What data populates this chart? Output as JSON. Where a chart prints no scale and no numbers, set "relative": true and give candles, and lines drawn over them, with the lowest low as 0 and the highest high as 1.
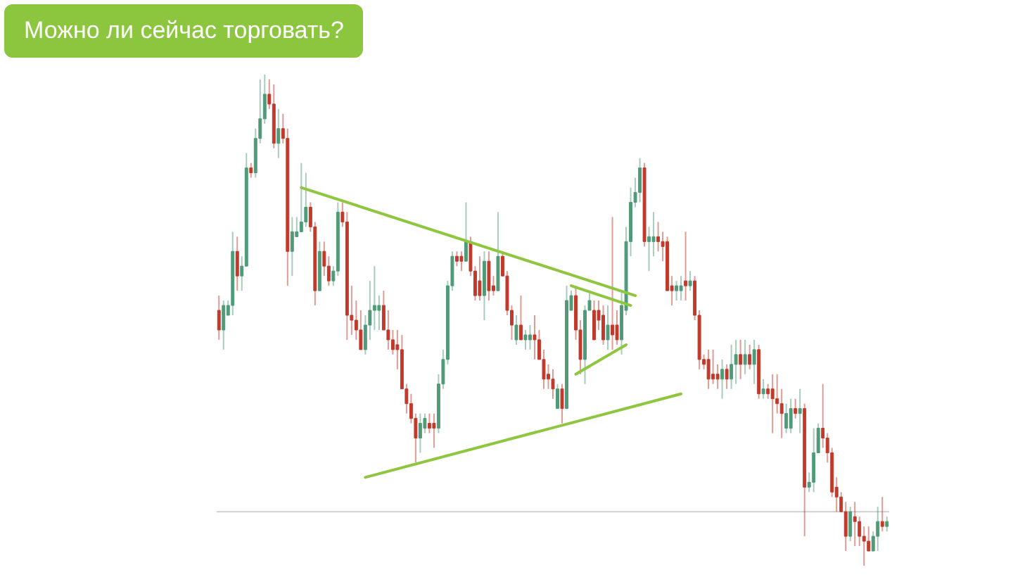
{
  "chart_data": {
    "type": "candlestick",
    "title": "Можно ли сейчас торговать?",
    "relative": true,
    "categories": [
      null,
      null,
      null,
      null,
      null,
      null,
      null,
      null,
      null,
      null,
      null,
      null,
      null,
      null,
      null,
      null,
      null,
      null,
      null,
      null,
      null,
      null,
      null,
      null,
      null,
      null,
      null,
      null,
      null,
      null,
      null,
      null,
      null,
      null,
      null,
      null,
      null,
      null,
      null,
      null,
      null,
      null,
      null,
      null,
      null,
      null,
      null,
      null,
      null,
      null,
      null,
      null,
      null,
      null,
      null,
      null,
      null,
      null,
      null,
      null,
      null,
      null,
      null,
      null,
      null,
      null,
      null,
      null,
      null,
      null,
      null,
      null,
      null,
      null,
      null,
      null,
      null,
      null,
      null,
      null,
      null,
      null,
      null,
      null,
      null,
      null,
      null,
      null,
      null,
      null,
      null,
      null,
      null,
      null,
      null,
      null,
      null,
      null,
      null,
      null,
      null,
      null,
      null,
      null,
      null,
      null,
      null,
      null,
      null,
      null,
      null,
      null,
      null,
      null,
      null,
      null,
      null,
      null,
      null,
      null,
      null,
      null,
      null,
      null,
      null,
      null,
      null,
      null,
      null,
      null,
      null,
      null,
      null,
      null,
      null,
      null,
      null,
      null,
      null,
      null,
      null,
      null,
      null,
      null,
      null,
      null,
      null
    ],
    "ohlc": [
      [
        0.52,
        0.55,
        0.46,
        0.48
      ],
      [
        0.48,
        0.54,
        0.44,
        0.53
      ],
      [
        0.51,
        0.54,
        0.51,
        0.53
      ],
      [
        0.53,
        0.68,
        0.51,
        0.64
      ],
      [
        0.64,
        0.67,
        0.56,
        0.59
      ],
      [
        0.59,
        0.63,
        0.56,
        0.61
      ],
      [
        0.61,
        0.84,
        0.61,
        0.81
      ],
      [
        0.81,
        0.82,
        0.79,
        0.8
      ],
      [
        0.8,
        0.89,
        0.79,
        0.87
      ],
      [
        0.87,
        0.99,
        0.86,
        0.91
      ],
      [
        0.91,
        1.0,
        0.9,
        0.96
      ],
      [
        0.96,
        0.99,
        0.93,
        0.94
      ],
      [
        0.94,
        0.98,
        0.85,
        0.86
      ],
      [
        0.86,
        0.93,
        0.83,
        0.89
      ],
      [
        0.89,
        0.92,
        0.86,
        0.87
      ],
      [
        0.87,
        0.89,
        0.57,
        0.64
      ],
      [
        0.64,
        0.71,
        0.59,
        0.68
      ],
      [
        0.67,
        0.71,
        0.67,
        0.68
      ],
      [
        0.68,
        0.82,
        0.68,
        0.7
      ],
      [
        0.7,
        0.8,
        0.69,
        0.73
      ],
      [
        0.73,
        0.74,
        0.68,
        0.69
      ],
      [
        0.69,
        0.7,
        0.53,
        0.56
      ],
      [
        0.56,
        0.66,
        0.56,
        0.64
      ],
      [
        0.64,
        0.66,
        0.59,
        0.61
      ],
      [
        0.61,
        0.63,
        0.57,
        0.58
      ],
      [
        0.58,
        0.61,
        0.57,
        0.6
      ],
      [
        0.6,
        0.74,
        0.59,
        0.72
      ],
      [
        0.72,
        0.74,
        0.69,
        0.7
      ],
      [
        0.7,
        0.72,
        0.46,
        0.51
      ],
      [
        0.51,
        0.57,
        0.47,
        0.5
      ],
      [
        0.5,
        0.54,
        0.46,
        0.48
      ],
      [
        0.48,
        0.52,
        0.44,
        0.44
      ],
      [
        0.44,
        0.51,
        0.43,
        0.49
      ],
      [
        0.49,
        0.58,
        0.46,
        0.52
      ],
      [
        0.52,
        0.61,
        0.48,
        0.53
      ],
      [
        0.52,
        0.55,
        0.48,
        0.53
      ],
      [
        0.53,
        0.56,
        0.48,
        0.48
      ],
      [
        0.48,
        0.52,
        0.44,
        0.46
      ],
      [
        0.46,
        0.48,
        0.43,
        0.44
      ],
      [
        0.45,
        0.48,
        0.4,
        0.44
      ],
      [
        0.44,
        0.47,
        0.36,
        0.36
      ],
      [
        0.36,
        0.37,
        0.31,
        0.33
      ],
      [
        0.33,
        0.35,
        0.29,
        0.3
      ],
      [
        0.3,
        0.31,
        0.21,
        0.26
      ],
      [
        0.26,
        0.31,
        0.23,
        0.29
      ],
      [
        0.28,
        0.31,
        0.27,
        0.3
      ],
      [
        0.29,
        0.31,
        0.27,
        0.28
      ],
      [
        0.29,
        0.31,
        0.24,
        0.28
      ],
      [
        0.28,
        0.39,
        0.27,
        0.37
      ],
      [
        0.37,
        0.44,
        0.36,
        0.42
      ],
      [
        0.42,
        0.58,
        0.41,
        0.57
      ],
      [
        0.57,
        0.64,
        0.56,
        0.63
      ],
      [
        0.63,
        0.64,
        0.61,
        0.62
      ],
      [
        0.63,
        0.64,
        0.6,
        0.62
      ],
      [
        0.62,
        0.74,
        0.62,
        0.66
      ],
      [
        0.66,
        0.67,
        0.59,
        0.6
      ],
      [
        0.6,
        0.61,
        0.54,
        0.55
      ],
      [
        0.58,
        0.63,
        0.54,
        0.55
      ],
      [
        0.55,
        0.64,
        0.5,
        0.62
      ],
      [
        0.62,
        0.64,
        0.54,
        0.56
      ],
      [
        0.57,
        0.59,
        0.55,
        0.56
      ],
      [
        0.56,
        0.72,
        0.56,
        0.63
      ],
      [
        0.63,
        0.64,
        0.59,
        0.59
      ],
      [
        0.59,
        0.6,
        0.51,
        0.52
      ],
      [
        0.52,
        0.53,
        0.46,
        0.49
      ],
      [
        0.46,
        0.51,
        0.45,
        0.49
      ],
      [
        0.49,
        0.55,
        0.46,
        0.46
      ],
      [
        0.46,
        0.48,
        0.44,
        0.47
      ],
      [
        0.46,
        0.49,
        0.44,
        0.47
      ],
      [
        0.47,
        0.51,
        0.42,
        0.46
      ],
      [
        0.46,
        0.48,
        0.42,
        0.42
      ],
      [
        0.42,
        0.44,
        0.36,
        0.38
      ],
      [
        0.39,
        0.41,
        0.36,
        0.38
      ],
      [
        0.38,
        0.4,
        0.34,
        0.36
      ],
      [
        0.32,
        0.37,
        0.32,
        0.36
      ],
      [
        0.36,
        0.37,
        0.29,
        0.32
      ],
      [
        0.32,
        0.57,
        0.32,
        0.54
      ],
      [
        0.52,
        0.56,
        0.52,
        0.55
      ],
      [
        0.55,
        0.57,
        0.46,
        0.48
      ],
      [
        0.48,
        0.5,
        0.39,
        0.42
      ],
      [
        0.42,
        0.53,
        0.37,
        0.52
      ],
      [
        0.52,
        0.56,
        0.52,
        0.54
      ],
      [
        0.52,
        0.54,
        0.46,
        0.46
      ],
      [
        0.52,
        0.54,
        0.48,
        0.5
      ],
      [
        0.51,
        0.53,
        0.45,
        0.46
      ],
      [
        0.46,
        0.53,
        0.44,
        0.49
      ],
      [
        0.49,
        0.71,
        0.44,
        0.47
      ],
      [
        0.49,
        0.52,
        0.45,
        0.46
      ],
      [
        0.46,
        0.56,
        0.43,
        0.53
      ],
      [
        0.52,
        0.69,
        0.51,
        0.66
      ],
      [
        0.66,
        0.77,
        0.63,
        0.74
      ],
      [
        0.74,
        0.79,
        0.73,
        0.76
      ],
      [
        0.76,
        0.83,
        0.74,
        0.81
      ],
      [
        0.81,
        0.82,
        0.65,
        0.66
      ],
      [
        0.66,
        0.69,
        0.6,
        0.67
      ],
      [
        0.66,
        0.72,
        0.63,
        0.67
      ],
      [
        0.67,
        0.7,
        0.64,
        0.66
      ],
      [
        0.66,
        0.68,
        0.62,
        0.65
      ],
      [
        0.66,
        0.67,
        0.56,
        0.56
      ],
      [
        0.57,
        0.59,
        0.53,
        0.56
      ],
      [
        0.56,
        0.58,
        0.54,
        0.57
      ],
      [
        0.56,
        0.59,
        0.54,
        0.57
      ],
      [
        0.58,
        0.68,
        0.54,
        0.57
      ],
      [
        0.57,
        0.6,
        0.56,
        0.58
      ],
      [
        0.58,
        0.59,
        0.5,
        0.51
      ],
      [
        0.51,
        0.52,
        0.4,
        0.42
      ],
      [
        0.42,
        0.43,
        0.4,
        0.41
      ],
      [
        0.42,
        0.44,
        0.36,
        0.38
      ],
      [
        0.39,
        0.44,
        0.37,
        0.38
      ],
      [
        0.39,
        0.41,
        0.36,
        0.38
      ],
      [
        0.38,
        0.42,
        0.34,
        0.4
      ],
      [
        0.4,
        0.41,
        0.36,
        0.38
      ],
      [
        0.38,
        0.45,
        0.36,
        0.41
      ],
      [
        0.41,
        0.46,
        0.37,
        0.43
      ],
      [
        0.43,
        0.46,
        0.38,
        0.41
      ],
      [
        0.41,
        0.46,
        0.39,
        0.43
      ],
      [
        0.43,
        0.45,
        0.4,
        0.41
      ],
      [
        0.41,
        0.46,
        0.37,
        0.44
      ],
      [
        0.44,
        0.45,
        0.34,
        0.35
      ],
      [
        0.35,
        0.38,
        0.34,
        0.36
      ],
      [
        0.36,
        0.37,
        0.34,
        0.35
      ],
      [
        0.36,
        0.39,
        0.27,
        0.34
      ],
      [
        0.34,
        0.39,
        0.31,
        0.33
      ],
      [
        0.33,
        0.36,
        0.26,
        0.31
      ],
      [
        0.28,
        0.33,
        0.27,
        0.31
      ],
      [
        0.28,
        0.34,
        0.27,
        0.32
      ],
      [
        0.32,
        0.34,
        0.3,
        0.31
      ],
      [
        0.31,
        0.36,
        0.27,
        0.32
      ],
      [
        0.32,
        0.33,
        0.06,
        0.16
      ],
      [
        0.16,
        0.19,
        0.15,
        0.17
      ],
      [
        0.17,
        0.28,
        0.15,
        0.23
      ],
      [
        0.23,
        0.29,
        0.23,
        0.28
      ],
      [
        0.28,
        0.37,
        0.24,
        0.26
      ],
      [
        0.26,
        0.27,
        0.21,
        0.23
      ],
      [
        0.23,
        0.24,
        0.14,
        0.15
      ],
      [
        0.16,
        0.18,
        0.11,
        0.14
      ],
      [
        0.14,
        0.15,
        0.11,
        0.11
      ],
      [
        0.11,
        0.13,
        0.03,
        0.06
      ],
      [
        0.06,
        0.12,
        0.05,
        0.11
      ],
      [
        0.1,
        0.13,
        0.04,
        0.09
      ],
      [
        0.09,
        0.1,
        0.04,
        0.06
      ],
      [
        0.06,
        0.08,
        0.0,
        0.05
      ],
      [
        0.05,
        0.08,
        0.03,
        0.03
      ],
      [
        0.03,
        0.07,
        0.03,
        0.06
      ],
      [
        0.06,
        0.12,
        0.03,
        0.09
      ],
      [
        0.09,
        0.14,
        0.07,
        0.08
      ],
      [
        0.08,
        0.1,
        0.07,
        0.09
      ]
    ],
    "colors": [
      "#c0392b",
      "#4f9a78",
      "#4f9a78",
      "#4f9a78",
      "#c0392b",
      "#4f9a78",
      "#4f9a78",
      "#c0392b",
      "#4f9a78",
      "#4f9a78",
      "#4f9a78",
      "#c0392b",
      "#c0392b",
      "#4f9a78",
      "#c0392b",
      "#c0392b",
      "#4f9a78",
      "#4f9a78",
      "#4f9a78",
      "#4f9a78",
      "#c0392b",
      "#c0392b",
      "#4f9a78",
      "#c0392b",
      "#c0392b",
      "#4f9a78",
      "#4f9a78",
      "#c0392b",
      "#c0392b",
      "#c0392b",
      "#c0392b",
      "#c0392b",
      "#4f9a78",
      "#4f9a78",
      "#4f9a78",
      "#4f9a78",
      "#c0392b",
      "#c0392b",
      "#c0392b",
      "#c0392b",
      "#c0392b",
      "#c0392b",
      "#c0392b",
      "#c0392b",
      "#4f9a78",
      "#4f9a78",
      "#c0392b",
      "#c0392b",
      "#4f9a78",
      "#4f9a78",
      "#4f9a78",
      "#4f9a78",
      "#c0392b",
      "#c0392b",
      "#4f9a78",
      "#c0392b",
      "#c0392b",
      "#c0392b",
      "#4f9a78",
      "#c0392b",
      "#c0392b",
      "#4f9a78",
      "#c0392b",
      "#c0392b",
      "#c0392b",
      "#4f9a78",
      "#c0392b",
      "#4f9a78",
      "#4f9a78",
      "#c0392b",
      "#c0392b",
      "#c0392b",
      "#c0392b",
      "#c0392b",
      "#4f9a78",
      "#c0392b",
      "#4f9a78",
      "#4f9a78",
      "#c0392b",
      "#c0392b",
      "#4f9a78",
      "#4f9a78",
      "#c0392b",
      "#c0392b",
      "#c0392b",
      "#4f9a78",
      "#c0392b",
      "#c0392b",
      "#4f9a78",
      "#4f9a78",
      "#4f9a78",
      "#4f9a78",
      "#4f9a78",
      "#c0392b",
      "#4f9a78",
      "#4f9a78",
      "#c0392b",
      "#c0392b",
      "#c0392b",
      "#c0392b",
      "#4f9a78",
      "#4f9a78",
      "#c0392b",
      "#4f9a78",
      "#c0392b",
      "#c0392b",
      "#c0392b",
      "#c0392b",
      "#c0392b",
      "#c0392b",
      "#4f9a78",
      "#c0392b",
      "#4f9a78",
      "#4f9a78",
      "#c0392b",
      "#4f9a78",
      "#c0392b",
      "#4f9a78",
      "#c0392b",
      "#4f9a78",
      "#c0392b",
      "#c0392b",
      "#c0392b",
      "#c0392b",
      "#4f9a78",
      "#4f9a78",
      "#c0392b",
      "#4f9a78",
      "#c0392b",
      "#4f9a78",
      "#4f9a78",
      "#4f9a78",
      "#c0392b",
      "#c0392b",
      "#c0392b",
      "#c0392b",
      "#c0392b",
      "#c0392b",
      "#4f9a78",
      "#c0392b",
      "#c0392b",
      "#c0392b",
      "#c0392b",
      "#4f9a78",
      "#4f9a78",
      "#c0392b",
      "#4f9a78"
    ],
    "series": [
      {
        "type": "line",
        "color": "#8ec63f",
        "values": [
          null,
          null,
          null,
          null,
          null,
          null,
          null,
          null,
          null,
          null,
          null,
          null,
          null,
          null,
          null,
          null,
          null,
          null,
          0.77,
          null,
          null,
          null,
          null,
          null,
          null,
          null,
          null,
          null,
          null,
          null,
          null,
          null,
          null,
          null,
          null,
          null,
          null,
          null,
          null,
          null,
          null,
          null,
          null,
          null,
          null,
          null,
          null,
          null,
          null,
          null,
          null,
          null,
          null,
          null,
          null,
          null,
          null,
          null,
          null,
          null,
          null,
          null,
          null,
          null,
          null,
          null,
          null,
          null,
          null,
          null,
          null,
          null,
          null,
          null,
          null,
          null,
          null,
          null,
          null,
          null,
          null,
          null,
          null,
          null,
          null,
          null,
          null,
          null,
          null,
          null,
          null,
          0.55,
          null,
          null,
          null,
          null,
          null,
          null,
          null,
          null,
          null,
          null,
          null,
          null,
          null,
          null,
          null,
          null,
          null,
          null,
          null,
          null,
          null,
          null,
          null,
          null,
          null,
          null,
          null,
          null,
          null,
          null,
          null,
          null,
          null,
          null,
          null,
          null,
          null,
          null,
          null,
          null,
          null,
          null,
          null,
          null,
          null,
          null,
          null,
          null,
          null,
          null,
          null,
          null,
          null,
          null,
          null
        ]
      },
      {
        "type": "line",
        "color": "#8ec63f",
        "values": [
          null,
          null,
          null,
          null,
          null,
          null,
          null,
          null,
          null,
          null,
          null,
          null,
          null,
          null,
          null,
          null,
          null,
          null,
          null,
          null,
          null,
          null,
          null,
          null,
          null,
          null,
          null,
          null,
          null,
          null,
          null,
          null,
          0.18,
          null,
          null,
          null,
          null,
          null,
          null,
          null,
          null,
          null,
          null,
          null,
          null,
          null,
          null,
          null,
          null,
          null,
          null,
          null,
          null,
          null,
          null,
          null,
          null,
          null,
          null,
          null,
          null,
          null,
          null,
          null,
          null,
          null,
          null,
          null,
          null,
          null,
          null,
          null,
          null,
          null,
          null,
          null,
          null,
          null,
          null,
          null,
          null,
          null,
          null,
          null,
          null,
          null,
          null,
          null,
          null,
          null,
          null,
          null,
          null,
          null,
          null,
          null,
          null,
          null,
          null,
          null,
          null,
          0.35,
          null,
          null,
          null,
          null,
          null,
          null,
          null,
          null,
          null,
          null,
          null,
          null,
          null,
          null,
          null,
          null,
          null,
          null,
          null,
          null,
          null,
          null,
          null,
          null,
          null,
          null,
          null,
          null,
          null,
          null,
          null,
          null,
          null,
          null,
          null,
          null,
          null,
          null,
          null,
          null,
          null,
          null,
          null,
          null,
          null
        ]
      },
      {
        "type": "line",
        "color": "#8ec63f",
        "values": [
          null,
          null,
          null,
          null,
          null,
          null,
          null,
          null,
          null,
          null,
          null,
          null,
          null,
          null,
          null,
          null,
          null,
          null,
          null,
          null,
          null,
          null,
          null,
          null,
          null,
          null,
          null,
          null,
          null,
          null,
          null,
          null,
          null,
          null,
          null,
          null,
          null,
          null,
          null,
          null,
          null,
          null,
          null,
          null,
          null,
          null,
          null,
          null,
          null,
          null,
          null,
          null,
          null,
          null,
          null,
          null,
          null,
          null,
          null,
          null,
          null,
          null,
          null,
          null,
          null,
          null,
          null,
          null,
          null,
          null,
          null,
          null,
          null,
          null,
          null,
          null,
          null,
          0.57,
          null,
          null,
          null,
          null,
          null,
          null,
          null,
          null,
          null,
          null,
          null,
          null,
          0.53,
          null,
          null,
          null,
          null,
          null,
          null,
          null,
          null,
          null,
          null,
          null,
          null,
          null,
          null,
          null,
          null,
          null,
          null,
          null,
          null,
          null,
          null,
          null,
          null,
          null,
          null,
          null,
          null,
          null,
          null,
          null,
          null,
          null,
          null,
          null,
          null,
          null,
          null,
          null,
          null,
          null,
          null,
          null,
          null,
          null,
          null,
          null,
          null,
          null,
          null,
          null,
          null,
          null,
          null,
          null,
          null
        ]
      },
      {
        "type": "line",
        "color": "#8ec63f",
        "values": [
          null,
          null,
          null,
          null,
          null,
          null,
          null,
          null,
          null,
          null,
          null,
          null,
          null,
          null,
          null,
          null,
          null,
          null,
          null,
          null,
          null,
          null,
          null,
          null,
          null,
          null,
          null,
          null,
          null,
          null,
          null,
          null,
          null,
          null,
          null,
          null,
          null,
          null,
          null,
          null,
          null,
          null,
          null,
          null,
          null,
          null,
          null,
          null,
          null,
          null,
          null,
          null,
          null,
          null,
          null,
          null,
          null,
          null,
          null,
          null,
          null,
          null,
          null,
          null,
          null,
          null,
          null,
          null,
          null,
          null,
          null,
          null,
          null,
          null,
          null,
          null,
          null,
          null,
          0.39,
          null,
          null,
          null,
          null,
          null,
          null,
          null,
          null,
          null,
          null,
          0.45,
          null,
          null,
          null,
          null,
          null,
          null,
          null,
          null,
          null,
          null,
          null,
          null,
          null,
          null,
          null,
          null,
          null,
          null,
          null,
          null,
          null,
          null,
          null,
          null,
          null,
          null,
          null,
          null,
          null,
          null,
          null,
          null,
          null,
          null,
          null,
          null,
          null,
          null,
          null,
          null,
          null,
          null,
          null,
          null,
          null,
          null,
          null,
          null,
          null,
          null,
          null,
          null,
          null,
          null,
          null,
          null,
          null
        ]
      }
    ],
    "ref_lines": [
      {
        "axis": "y",
        "value": 0.11,
        "color": "#d0d0d0"
      }
    ]
  }
}
